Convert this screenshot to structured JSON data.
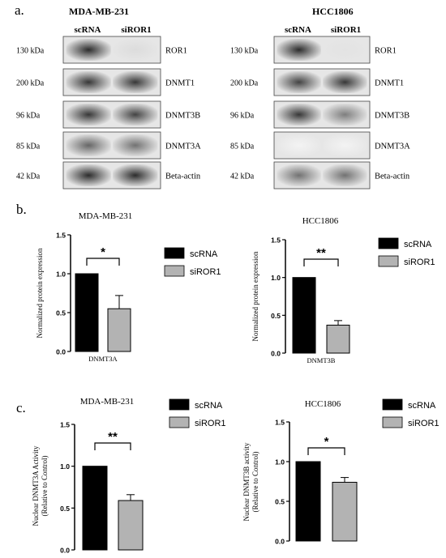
{
  "panel_a": {
    "label": "a.",
    "left": {
      "cell_line": "MDA-MB-231",
      "lanes": [
        "scRNA",
        "siROR1"
      ],
      "rows": [
        {
          "kda": "130 kDa",
          "protein": "ROR1"
        },
        {
          "kda": "200 kDa",
          "protein": "DNMT1"
        },
        {
          "kda": "96 kDa",
          "protein": "DNMT3B"
        },
        {
          "kda": "85 kDa",
          "protein": "DNMT3A"
        },
        {
          "kda": "42 kDa",
          "protein": "Beta-actin"
        }
      ]
    },
    "right": {
      "cell_line": "HCC1806",
      "lanes": [
        "scRNA",
        "siROR1"
      ],
      "rows": [
        {
          "kda": "130 kDa",
          "protein": "ROR1"
        },
        {
          "kda": "200 kDa",
          "protein": "DNMT1"
        },
        {
          "kda": "96 kDa",
          "protein": "DNMT3B"
        },
        {
          "kda": "85 kDa",
          "protein": "DNMT3A"
        },
        {
          "kda": "42 kDa",
          "protein": "Beta-actin"
        }
      ]
    }
  },
  "panel_b": {
    "label": "b."
  },
  "panel_c": {
    "label": "c."
  },
  "colors": {
    "scRNA": "#000000",
    "siROR1": "#b3b3b3"
  },
  "chart_data": [
    {
      "type": "bar",
      "panel": "b",
      "title": "MDA-MB-231",
      "ylabel": "Normalized protein expression",
      "xlabel": "DNMT3A",
      "ylim": [
        0,
        1.5
      ],
      "yticks": [
        "0.0",
        "0.5",
        "1.0",
        "1.5"
      ],
      "series": [
        {
          "name": "scRNA",
          "values": [
            1.0
          ],
          "error": [
            0
          ]
        },
        {
          "name": "siROR1",
          "values": [
            0.55
          ],
          "error": [
            0.17
          ]
        }
      ],
      "significance": "*",
      "legend": "right"
    },
    {
      "type": "bar",
      "panel": "b",
      "title": "HCC1806",
      "ylabel": "Normalized protein expression",
      "xlabel": "DNMT3B",
      "ylim": [
        0,
        1.5
      ],
      "yticks": [
        "0.0",
        "0.5",
        "1.0",
        "1.5"
      ],
      "series": [
        {
          "name": "scRNA",
          "values": [
            1.0
          ],
          "error": [
            0
          ]
        },
        {
          "name": "siROR1",
          "values": [
            0.37
          ],
          "error": [
            0.06
          ]
        }
      ],
      "significance": "**",
      "legend": "right"
    },
    {
      "type": "bar",
      "panel": "c",
      "title": "MDA-MB-231",
      "ylabel": "Nuclear DNMT3A Activity (Relative to Control)",
      "ylabel_lines": [
        "Nuclear DNMT3A Activity",
        "(Relative to Control)"
      ],
      "xlabel": "",
      "ylim": [
        0,
        1.5
      ],
      "yticks": [
        "0.0",
        "0.5",
        "1.0",
        "1.5"
      ],
      "series": [
        {
          "name": "scRNA",
          "values": [
            1.0
          ],
          "error": [
            0
          ]
        },
        {
          "name": "siROR1",
          "values": [
            0.59
          ],
          "error": [
            0.07
          ]
        }
      ],
      "significance": "**",
      "legend": "top-right"
    },
    {
      "type": "bar",
      "panel": "c",
      "title": "HCC1806",
      "ylabel": "Nuclear DNMT3B activity (Relative to Control)",
      "ylabel_lines": [
        "Nuclear DNMT3B activity",
        "(Relative to Control)"
      ],
      "xlabel": "",
      "ylim": [
        0,
        1.5
      ],
      "yticks": [
        "0.0",
        "0.5",
        "1.0",
        "1.5"
      ],
      "series": [
        {
          "name": "scRNA",
          "values": [
            1.0
          ],
          "error": [
            0
          ]
        },
        {
          "name": "siROR1",
          "values": [
            0.74
          ],
          "error": [
            0.06
          ]
        }
      ],
      "significance": "*",
      "legend": "top-right"
    }
  ]
}
